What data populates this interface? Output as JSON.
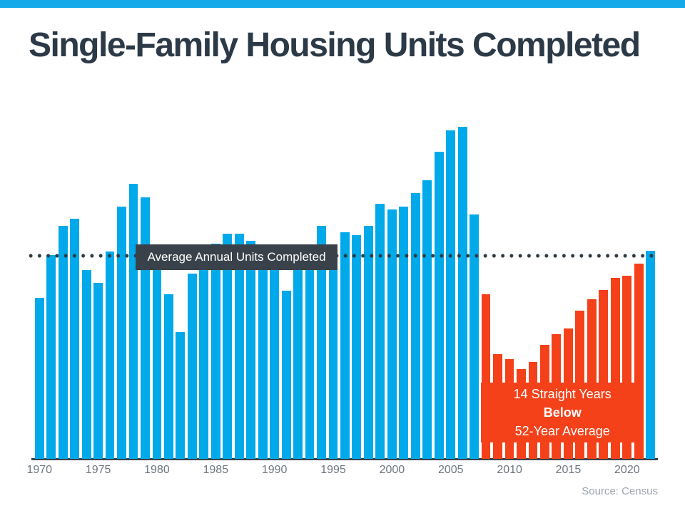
{
  "page": {
    "title": "Single-Family Housing Units Completed",
    "accent_color": "#16A9EA"
  },
  "chart_data": {
    "type": "bar",
    "title": "Single-Family Housing Units Completed",
    "unit": "thousands of single-family housing units completed per year",
    "years": [
      1970,
      1971,
      1972,
      1973,
      1974,
      1975,
      1976,
      1977,
      1978,
      1979,
      1980,
      1981,
      1982,
      1983,
      1984,
      1985,
      1986,
      1987,
      1988,
      1989,
      1990,
      1991,
      1992,
      1993,
      1994,
      1995,
      1996,
      1997,
      1998,
      1999,
      2000,
      2001,
      2002,
      2003,
      2004,
      2005,
      2006,
      2007,
      2008,
      2009,
      2010,
      2011,
      2012,
      2013,
      2014,
      2015,
      2016,
      2017,
      2018,
      2019,
      2020,
      2021,
      2022
    ],
    "values": [
      802,
      1014,
      1160,
      1197,
      940,
      875,
      1034,
      1258,
      1369,
      1301,
      957,
      819,
      632,
      924,
      1025,
      1072,
      1120,
      1123,
      1085,
      1026,
      966,
      838,
      964,
      1039,
      1160,
      1066,
      1129,
      1116,
      1160,
      1270,
      1242,
      1256,
      1325,
      1386,
      1531,
      1636,
      1654,
      1218,
      819,
      520,
      496,
      447,
      483,
      569,
      620,
      648,
      738,
      795,
      840,
      903,
      912,
      971,
      1035
    ],
    "ylim": [
      0,
      1700
    ],
    "grid": false,
    "colors": {
      "standard": "#00A9E9",
      "below_average": "#F4411A"
    },
    "below_average_period": {
      "start_year": 2008,
      "end_year": 2021
    },
    "average_line": {
      "label": "Average Annual Units Completed",
      "value": 1009,
      "style": "dotted",
      "dot_color": "#2F3A42",
      "box_color": "#39424A"
    },
    "annotation": {
      "lines": [
        "14 Straight Years",
        "Below",
        "52-Year Average"
      ]
    },
    "x_ticks": [
      1970,
      1975,
      1980,
      1985,
      1990,
      1995,
      2000,
      2005,
      2010,
      2015,
      2020
    ],
    "source": "Source: Census"
  }
}
